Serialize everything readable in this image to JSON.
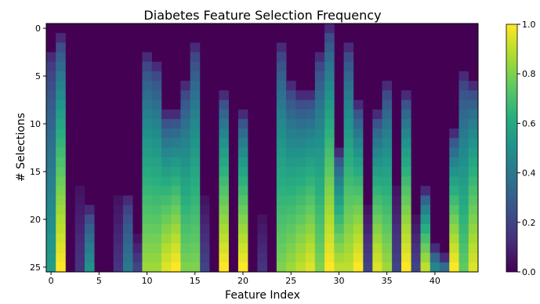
{
  "chart_data": {
    "type": "heatmap",
    "title": "Diabetes Feature Selection Frequency",
    "xlabel": "Feature Index",
    "ylabel": "# Selections",
    "x_ticks": [
      0,
      5,
      10,
      15,
      20,
      25,
      30,
      35,
      40
    ],
    "y_ticks": [
      0,
      5,
      10,
      15,
      20,
      25
    ],
    "x_range": [
      0,
      44
    ],
    "y_range": [
      0,
      25
    ],
    "y_inverted": true,
    "colormap": "viridis",
    "colorbar": {
      "min": 0.0,
      "max": 1.0,
      "ticks": [
        "0.0",
        "0.2",
        "0.4",
        "0.6",
        "0.8",
        "1.0"
      ]
    },
    "columns": [
      {
        "feature": 0,
        "start": 3,
        "top": 0.55
      },
      {
        "feature": 1,
        "start": 1,
        "top": 1.0
      },
      {
        "feature": 4,
        "start": 19,
        "top": 0.5
      },
      {
        "feature": 8,
        "start": 18,
        "top": 0.4
      },
      {
        "feature": 10,
        "start": 3,
        "top": 0.85
      },
      {
        "feature": 11,
        "start": 4,
        "top": 0.85
      },
      {
        "feature": 12,
        "start": 9,
        "top": 0.95
      },
      {
        "feature": 13,
        "start": 9,
        "top": 1.0
      },
      {
        "feature": 14,
        "start": 6,
        "top": 0.8
      },
      {
        "feature": 15,
        "start": 2,
        "top": 0.8
      },
      {
        "feature": 18,
        "start": 7,
        "top": 1.0
      },
      {
        "feature": 20,
        "start": 9,
        "top": 1.0
      },
      {
        "feature": 24,
        "start": 2,
        "top": 0.8
      },
      {
        "feature": 25,
        "start": 6,
        "top": 0.85
      },
      {
        "feature": 26,
        "start": 7,
        "top": 0.9
      },
      {
        "feature": 27,
        "start": 7,
        "top": 0.95
      },
      {
        "feature": 28,
        "start": 3,
        "top": 0.8
      },
      {
        "feature": 29,
        "start": 0,
        "top": 1.0
      },
      {
        "feature": 30,
        "start": 13,
        "top": 0.9
      },
      {
        "feature": 31,
        "start": 2,
        "top": 0.9
      },
      {
        "feature": 32,
        "start": 8,
        "top": 1.0
      },
      {
        "feature": 34,
        "start": 9,
        "top": 0.95
      },
      {
        "feature": 35,
        "start": 6,
        "top": 0.85
      },
      {
        "feature": 37,
        "start": 7,
        "top": 1.0
      },
      {
        "feature": 39,
        "start": 17,
        "top": 0.9
      },
      {
        "feature": 40,
        "start": 23,
        "top": 0.45
      },
      {
        "feature": 41,
        "start": 24,
        "top": 0.35
      },
      {
        "feature": 42,
        "start": 11,
        "top": 1.0
      },
      {
        "feature": 43,
        "start": 5,
        "top": 0.75
      },
      {
        "feature": 44,
        "start": 6,
        "top": 0.95
      }
    ],
    "faint_columns": [
      {
        "feature": 3,
        "start": 17,
        "top": 0.15
      },
      {
        "feature": 7,
        "start": 18,
        "top": 0.15
      },
      {
        "feature": 9,
        "start": 22,
        "top": 0.2
      },
      {
        "feature": 16,
        "start": 18,
        "top": 0.2
      },
      {
        "feature": 22,
        "start": 20,
        "top": 0.15
      },
      {
        "feature": 33,
        "start": 19,
        "top": 0.2
      },
      {
        "feature": 36,
        "start": 17,
        "top": 0.2
      },
      {
        "feature": 38,
        "start": 20,
        "top": 0.2
      }
    ]
  }
}
